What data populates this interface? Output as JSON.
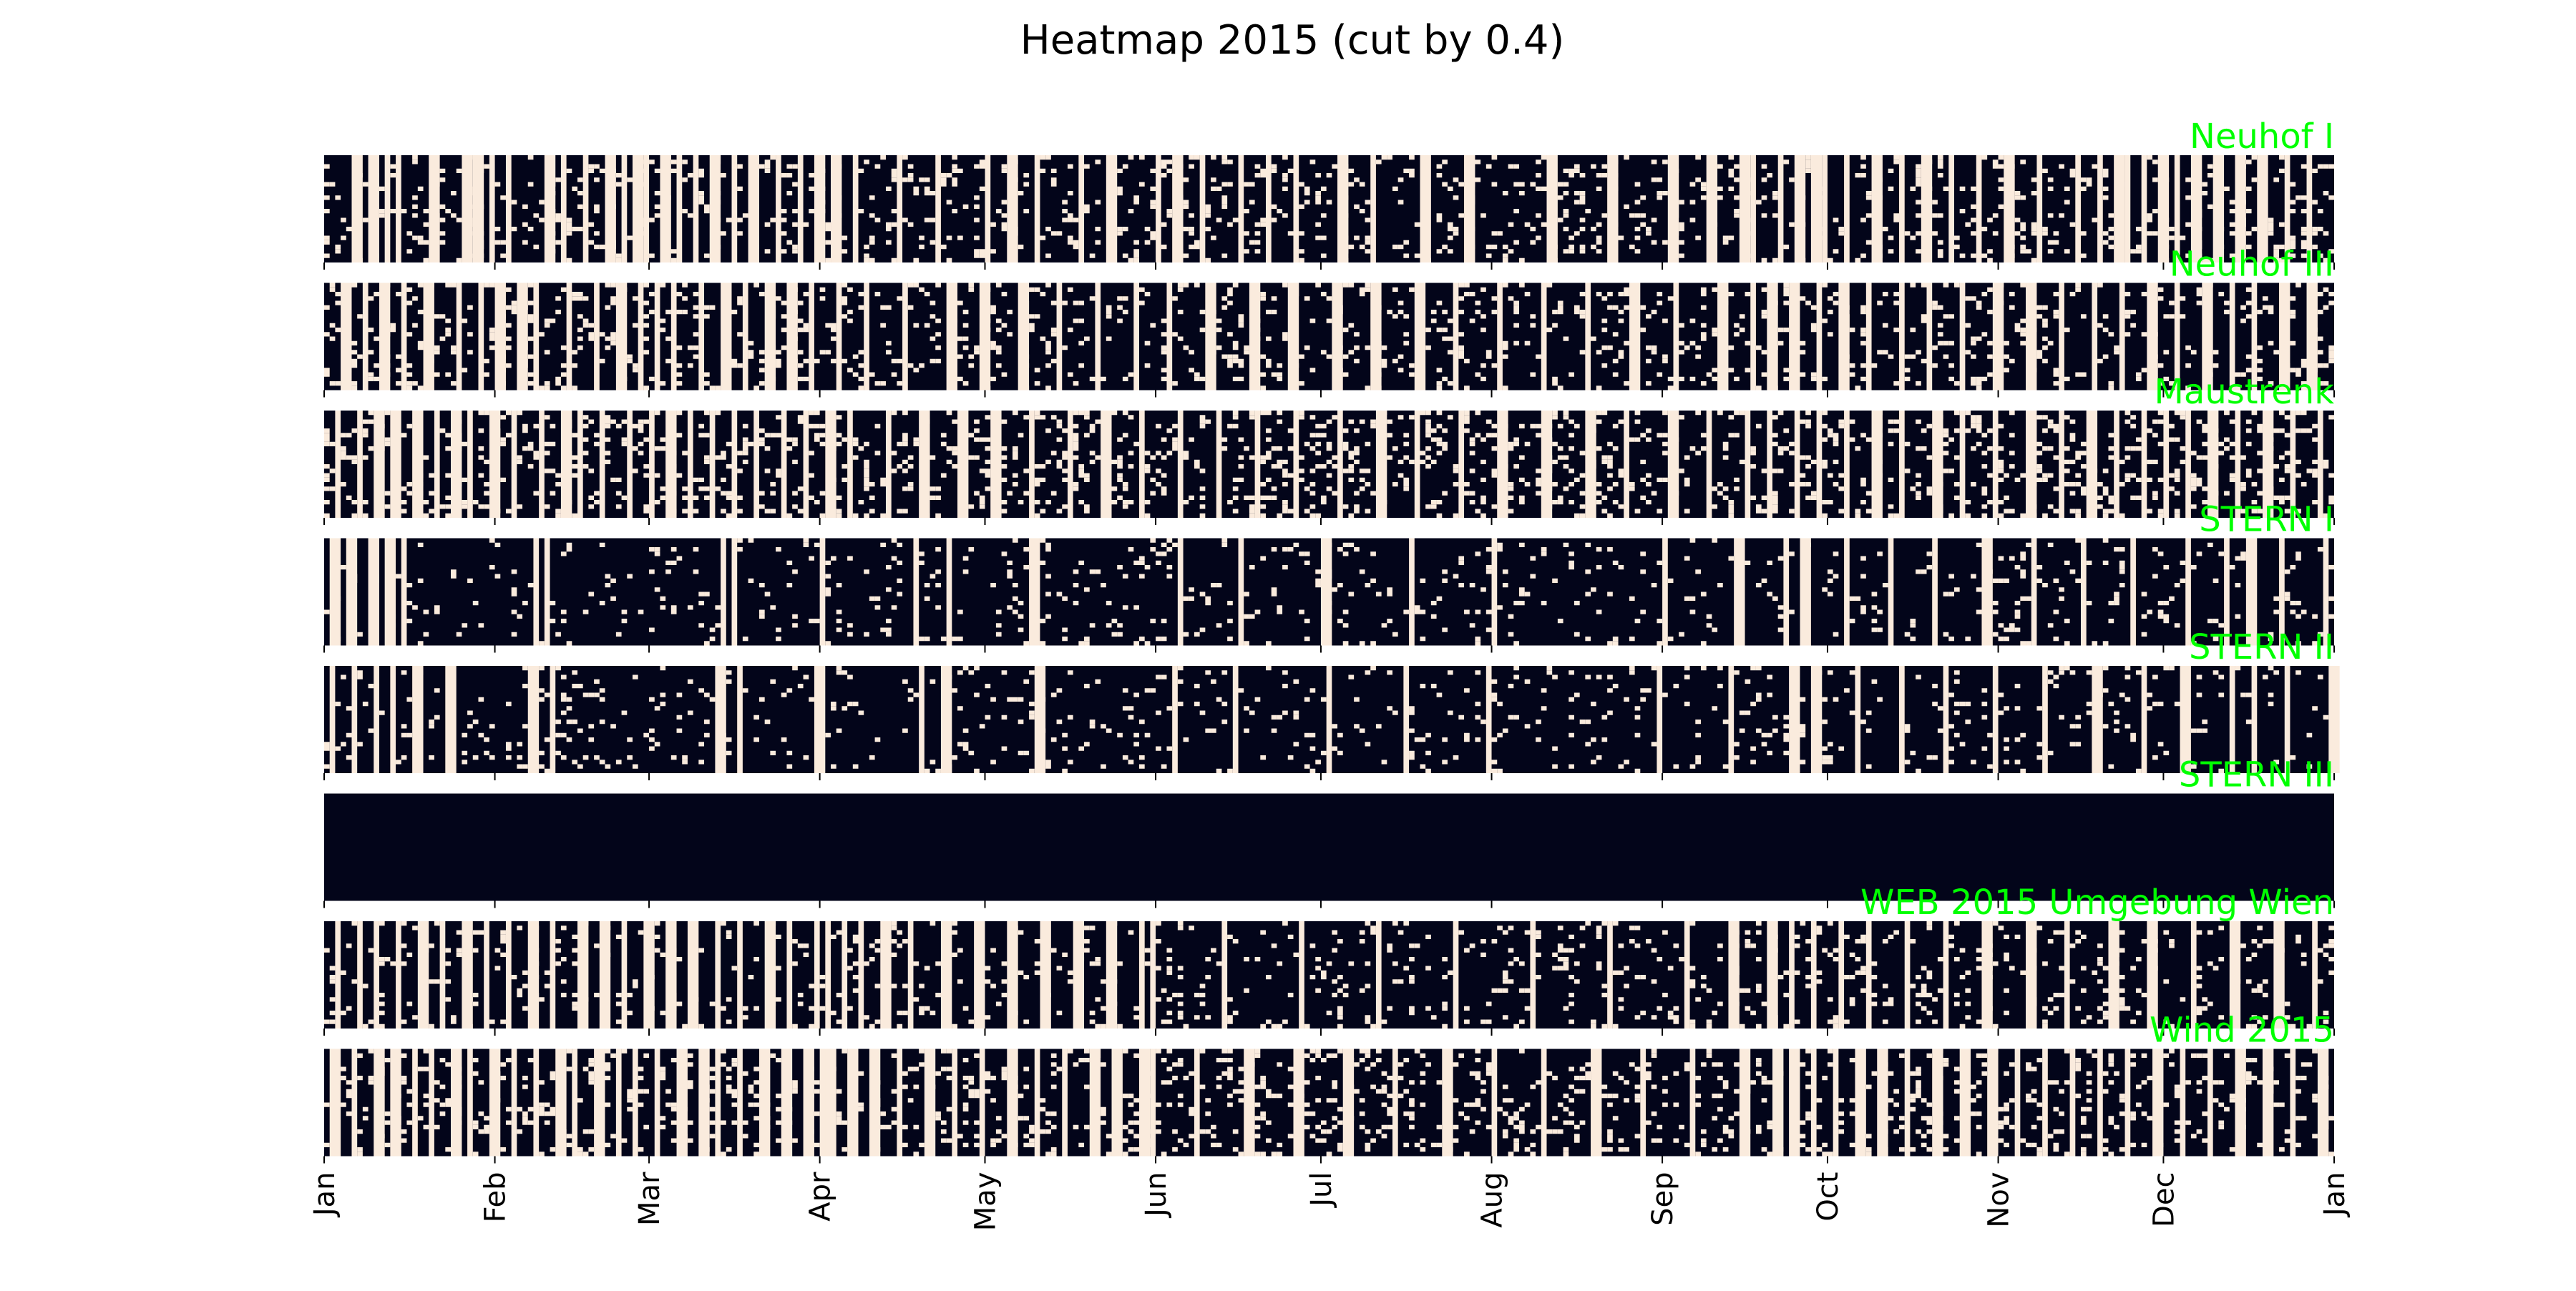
{
  "chart_data": {
    "type": "heatmap",
    "title": "Heatmap 2015 (cut by 0.4)",
    "year": 2015,
    "threshold": 0.4,
    "x_range": [
      "2015-01-01",
      "2016-01-01"
    ],
    "xticks": [
      "Jan",
      "Feb",
      "Mar",
      "Apr",
      "May",
      "Jun",
      "Jul",
      "Aug",
      "Sep",
      "Oct",
      "Nov",
      "Dec",
      "Jan"
    ],
    "colors": {
      "dark": "#03051A",
      "light": "#FAEBDD",
      "label": "#00FF00",
      "text": "#000000"
    },
    "series": [
      {
        "name": "Neuhof I",
        "cut_fraction": 0.24,
        "cut_days": [
          5,
          8,
          11,
          13,
          19,
          25,
          27,
          30,
          33,
          40,
          43,
          47,
          51,
          54,
          56,
          58,
          61,
          64,
          67,
          70,
          74,
          77,
          82,
          86,
          89,
          92,
          96,
          104,
          111,
          120,
          124,
          129,
          137,
          142,
          151,
          154,
          159,
          166,
          171,
          176,
          184,
          190,
          199,
          207,
          222,
          233,
          244,
          251,
          257,
          259,
          264,
          267,
          270,
          272,
          276,
          281,
          286,
          290,
          295,
          300,
          305,
          311,
          318,
          322,
          325,
          327,
          330,
          333,
          336,
          339,
          343,
          347,
          351,
          356,
          360
        ]
      },
      {
        "name": "Neuhof III",
        "cut_fraction": 0.25,
        "cut_days": [
          3,
          7,
          10,
          14,
          18,
          24,
          28,
          31,
          35,
          38,
          44,
          49,
          53,
          57,
          60,
          63,
          68,
          72,
          76,
          80,
          84,
          88,
          93,
          98,
          105,
          113,
          119,
          126,
          133,
          140,
          147,
          153,
          160,
          168,
          175,
          183,
          190,
          198,
          205,
          213,
          221,
          229,
          237,
          245,
          253,
          259,
          262,
          266,
          271,
          275,
          280,
          286,
          291,
          297,
          303,
          309,
          315,
          321,
          326,
          331,
          336,
          341,
          346,
          350,
          355,
          360
        ]
      },
      {
        "name": "Maustrenk",
        "cut_fraction": 0.32,
        "cut_days": [
          2,
          6,
          9,
          12,
          16,
          20,
          23,
          26,
          30,
          34,
          39,
          43,
          46,
          50,
          55,
          59,
          62,
          66,
          70,
          74,
          78,
          83,
          87,
          91,
          95,
          102,
          108,
          115,
          121,
          128,
          135,
          141,
          148,
          155,
          162,
          169,
          176,
          184,
          191,
          198,
          206,
          213,
          221,
          229,
          236,
          244,
          251,
          258,
          262,
          267,
          271,
          276,
          281,
          286,
          292,
          297,
          303,
          309,
          315,
          320,
          325,
          330,
          334,
          338,
          342,
          347,
          352,
          357,
          362
        ]
      },
      {
        "name": "STERN I",
        "cut_fraction": 0.14,
        "cut_days": [
          1,
          4,
          8,
          11,
          14,
          38,
          40,
          72,
          74,
          90,
          107,
          113,
          128,
          155,
          166,
          181,
          197,
          212,
          243,
          256,
          265,
          268,
          276,
          284,
          292,
          301,
          310,
          319,
          328,
          338,
          345,
          349,
          355,
          363
        ]
      },
      {
        "name": "STERN II",
        "cut_fraction": 0.15,
        "cut_days": [
          1,
          5,
          9,
          12,
          16,
          22,
          37,
          41,
          71,
          75,
          89,
          108,
          112,
          129,
          154,
          165,
          182,
          196,
          211,
          242,
          255,
          266,
          270,
          278,
          286,
          294,
          303,
          312,
          321,
          330,
          337,
          346,
          350,
          356,
          364
        ]
      },
      {
        "name": "STERN III",
        "cut_fraction": 0.0,
        "cut_days": []
      },
      {
        "name": "WEB 2015 Umgebung Wien",
        "cut_fraction": 0.2,
        "cut_days": [
          2,
          6,
          9,
          13,
          17,
          21,
          25,
          29,
          33,
          37,
          41,
          46,
          50,
          54,
          58,
          62,
          66,
          71,
          75,
          80,
          84,
          89,
          91,
          94,
          97,
          101,
          106,
          112,
          118,
          124,
          130,
          136,
          142,
          148,
          150,
          163,
          177,
          191,
          205,
          219,
          233,
          247,
          255,
          262,
          266,
          270,
          275,
          280,
          287,
          294,
          301,
          309,
          316,
          324,
          331,
          339,
          346,
          354,
          361
        ]
      },
      {
        "name": "Wind 2015",
        "cut_fraction": 0.27,
        "cut_days": [
          1,
          2,
          5,
          9,
          12,
          16,
          19,
          23,
          26,
          30,
          34,
          38,
          42,
          45,
          49,
          53,
          56,
          60,
          64,
          68,
          71,
          75,
          79,
          83,
          87,
          90,
          91,
          95,
          99,
          104,
          109,
          114,
          119,
          124,
          129,
          134,
          139,
          143,
          148,
          150,
          158,
          167,
          176,
          185,
          194,
          203,
          212,
          221,
          230,
          239,
          248,
          257,
          263,
          266,
          270,
          274,
          278,
          282,
          287,
          292,
          297,
          302,
          307,
          312,
          317,
          322,
          327,
          332,
          337,
          342,
          347,
          352,
          357,
          362
        ]
      }
    ]
  }
}
